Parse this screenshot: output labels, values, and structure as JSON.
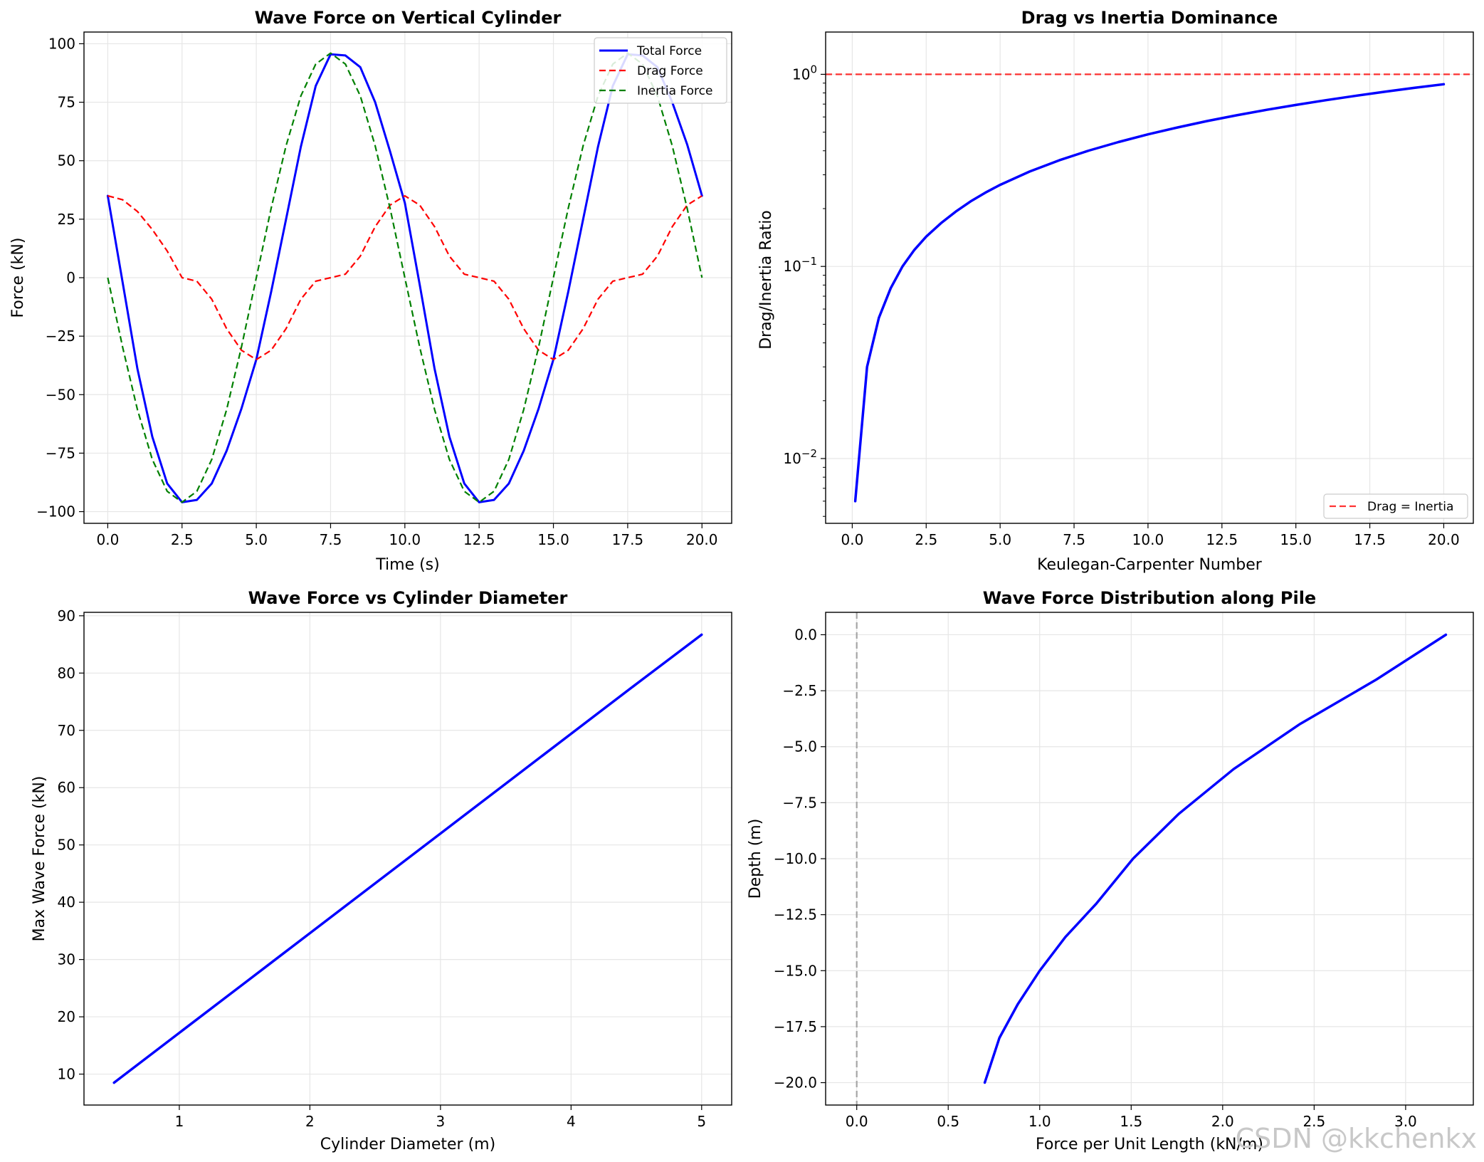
{
  "chart_data": [
    {
      "type": "line",
      "title": "Wave Force on Vertical Cylinder",
      "xlabel": "Time (s)",
      "ylabel": "Force (kN)",
      "xlim": [
        -0.8,
        21.0
      ],
      "ylim": [
        -105,
        105
      ],
      "xscale": "linear",
      "yscale": "linear",
      "grid": true,
      "legend_position": "top-right",
      "xticks": [
        0.0,
        2.5,
        5.0,
        7.5,
        10.0,
        12.5,
        15.0,
        17.5,
        20.0
      ],
      "xtick_labels": [
        "0.0",
        "2.5",
        "5.0",
        "7.5",
        "10.0",
        "12.5",
        "15.0",
        "17.5",
        "20.0"
      ],
      "yticks": [
        -100,
        -75,
        -50,
        -25,
        0,
        25,
        50,
        75,
        100
      ],
      "ytick_labels": [
        "−100",
        "−75",
        "−50",
        "−25",
        "0",
        "25",
        "50",
        "75",
        "100"
      ],
      "series": [
        {
          "name": "Total Force",
          "color": "#0000ff",
          "style": "solid",
          "width": 3,
          "x": [
            0.0,
            0.5,
            1.0,
            1.5,
            2.0,
            2.5,
            3.0,
            3.5,
            4.0,
            4.5,
            5.0,
            5.5,
            6.0,
            6.5,
            7.0,
            7.5,
            8.0,
            8.5,
            9.0,
            9.5,
            10.0,
            10.5,
            11.0,
            11.5,
            12.0,
            12.5,
            13.0,
            13.5,
            14.0,
            14.5,
            15.0,
            15.5,
            16.0,
            16.5,
            17.0,
            17.5,
            18.0,
            18.5,
            19.0,
            19.5,
            20.0
          ],
          "y": [
            35.0,
            -2.0,
            -39.0,
            -68.0,
            -88.0,
            -96.0,
            -95.0,
            -88.0,
            -74.0,
            -56.0,
            -35.0,
            -6.0,
            25.0,
            56.0,
            82.0,
            95.5,
            95.0,
            90.0,
            75.0,
            54.0,
            32.0,
            -3.0,
            -39.0,
            -68.0,
            -88.0,
            -96.0,
            -95.0,
            -88.0,
            -74.0,
            -56.0,
            -35.0,
            -6.0,
            25.0,
            56.0,
            82.0,
            95.5,
            95.0,
            90.0,
            75.0,
            57.0,
            35.0
          ]
        },
        {
          "name": "Drag Force",
          "color": "#ff0000",
          "style": "dashed",
          "width": 2.2,
          "x": [
            0.0,
            0.5,
            1.0,
            1.5,
            2.0,
            2.5,
            3.0,
            3.5,
            4.0,
            4.5,
            5.0,
            5.5,
            6.0,
            6.5,
            7.0,
            7.5,
            8.0,
            8.5,
            9.0,
            9.5,
            10.0,
            10.5,
            11.0,
            11.5,
            12.0,
            12.5,
            13.0,
            13.5,
            14.0,
            14.5,
            15.0,
            15.5,
            16.0,
            16.5,
            17.0,
            17.5,
            18.0,
            18.5,
            19.0,
            19.5,
            20.0
          ],
          "y": [
            35.0,
            33.3,
            28.3,
            20.6,
            11.4,
            0.0,
            -1.5,
            -9.2,
            -21.8,
            -31.0,
            -35.0,
            -31.0,
            -21.8,
            -9.2,
            -1.5,
            0.0,
            1.5,
            9.2,
            21.8,
            31.0,
            35.0,
            31.0,
            21.8,
            9.2,
            1.5,
            0.0,
            -1.5,
            -9.2,
            -21.8,
            -31.0,
            -35.0,
            -31.0,
            -21.8,
            -9.2,
            -1.5,
            0.0,
            1.5,
            9.2,
            21.8,
            31.0,
            35.0
          ]
        },
        {
          "name": "Inertia Force",
          "color": "#008000",
          "style": "dashed",
          "width": 2.2,
          "x": [
            0.0,
            0.5,
            1.0,
            1.5,
            2.0,
            2.5,
            3.0,
            3.5,
            4.0,
            4.5,
            5.0,
            5.5,
            6.0,
            6.5,
            7.0,
            7.5,
            8.0,
            8.5,
            9.0,
            9.5,
            10.0,
            10.5,
            11.0,
            11.5,
            12.0,
            12.5,
            13.0,
            13.5,
            14.0,
            14.5,
            15.0,
            15.5,
            16.0,
            16.5,
            17.0,
            17.5,
            18.0,
            18.5,
            19.0,
            19.5,
            20.0
          ],
          "y": [
            0.0,
            -29.7,
            -56.4,
            -77.7,
            -91.3,
            -96.0,
            -91.3,
            -77.7,
            -56.4,
            -29.7,
            0.0,
            29.7,
            56.4,
            77.7,
            91.3,
            96.0,
            91.3,
            77.7,
            56.4,
            29.7,
            0.0,
            -29.7,
            -56.4,
            -77.7,
            -91.3,
            -96.0,
            -91.3,
            -77.7,
            -56.4,
            -29.7,
            0.0,
            29.7,
            56.4,
            77.7,
            91.3,
            96.0,
            91.3,
            77.7,
            56.4,
            29.7,
            0.0
          ]
        }
      ]
    },
    {
      "type": "line",
      "title": "Drag vs Inertia Dominance",
      "xlabel": "Keulegan-Carpenter Number",
      "ylabel": "Drag/Inertia Ratio",
      "xlim": [
        -0.9,
        21.0
      ],
      "ylim": [
        0.0046,
        1.66
      ],
      "xscale": "linear",
      "yscale": "log",
      "grid": true,
      "legend_position": "bottom-right",
      "xticks": [
        0.0,
        2.5,
        5.0,
        7.5,
        10.0,
        12.5,
        15.0,
        17.5,
        20.0
      ],
      "xtick_labels": [
        "0.0",
        "2.5",
        "5.0",
        "7.5",
        "10.0",
        "12.5",
        "15.0",
        "17.5",
        "20.0"
      ],
      "yticks": [
        0.01,
        0.1,
        1.0
      ],
      "ytick_base": "10",
      "ytick_exponents": [
        "−2",
        "−1",
        "0"
      ],
      "reference_line": {
        "name": "Drag = Inertia",
        "y": 1.0,
        "color": "#ff0000",
        "style": "dashed"
      },
      "series": [
        {
          "name": "Ratio",
          "color": "#0000ff",
          "style": "solid",
          "width": 3.5,
          "x": [
            0.1,
            0.5,
            0.9,
            1.3,
            1.7,
            2.1,
            2.5,
            3.0,
            3.5,
            4.0,
            4.5,
            5.0,
            6.0,
            7.0,
            8.0,
            9.0,
            10.0,
            11.0,
            12.0,
            13.0,
            14.0,
            15.0,
            16.0,
            17.0,
            18.0,
            19.0,
            20.0
          ],
          "y": [
            0.006,
            0.03,
            0.054,
            0.077,
            0.1,
            0.122,
            0.143,
            0.168,
            0.193,
            0.218,
            0.242,
            0.266,
            0.312,
            0.357,
            0.401,
            0.444,
            0.487,
            0.529,
            0.571,
            0.612,
            0.653,
            0.693,
            0.733,
            0.772,
            0.811,
            0.85,
            0.888
          ]
        }
      ]
    },
    {
      "type": "line",
      "title": "Wave Force vs Cylinder Diameter",
      "xlabel": "Cylinder Diameter (m)",
      "ylabel": "Max Wave Force (kN)",
      "xlim": [
        0.27,
        5.23
      ],
      "ylim": [
        4.6,
        90.6
      ],
      "xscale": "linear",
      "yscale": "linear",
      "grid": true,
      "xticks": [
        1,
        2,
        3,
        4,
        5
      ],
      "xtick_labels": [
        "1",
        "2",
        "3",
        "4",
        "5"
      ],
      "yticks": [
        10,
        20,
        30,
        40,
        50,
        60,
        70,
        80,
        90
      ],
      "ytick_labels": [
        "10",
        "20",
        "30",
        "40",
        "50",
        "60",
        "70",
        "80",
        "90"
      ],
      "series": [
        {
          "name": "Max Wave Force",
          "color": "#0000ff",
          "style": "solid",
          "width": 3.5,
          "x": [
            0.5,
            1.0,
            1.5,
            2.0,
            2.5,
            3.0,
            3.5,
            4.0,
            4.5,
            5.0
          ],
          "y": [
            8.5,
            17.2,
            25.9,
            34.6,
            43.3,
            52.0,
            60.7,
            69.4,
            78.1,
            86.7
          ]
        }
      ]
    },
    {
      "type": "line",
      "title": "Wave Force Distribution along Pile",
      "xlabel": "Force per Unit Length (kN/m)",
      "ylabel": "Depth (m)",
      "xlim": [
        -0.17,
        3.37
      ],
      "ylim": [
        -21.0,
        1.0
      ],
      "xscale": "linear",
      "yscale": "linear",
      "grid": true,
      "xticks": [
        0.0,
        0.5,
        1.0,
        1.5,
        2.0,
        2.5,
        3.0
      ],
      "xtick_labels": [
        "0.0",
        "0.5",
        "1.0",
        "1.5",
        "2.0",
        "2.5",
        "3.0"
      ],
      "yticks": [
        -20.0,
        -17.5,
        -15.0,
        -12.5,
        -10.0,
        -7.5,
        -5.0,
        -2.5,
        0.0
      ],
      "ytick_labels": [
        "−20.0",
        "−17.5",
        "−15.0",
        "−12.5",
        "−10.0",
        "−7.5",
        "−5.0",
        "−2.5",
        "0.0"
      ],
      "reference_line": {
        "name": "zero force",
        "x": 0.0,
        "color": "#999999",
        "style": "dashed"
      },
      "series": [
        {
          "name": "Force distribution",
          "color": "#0000ff",
          "style": "solid",
          "width": 3.5,
          "x": [
            0.7,
            0.78,
            0.88,
            1.0,
            1.14,
            1.31,
            1.51,
            1.76,
            2.06,
            2.42,
            2.84,
            3.22
          ],
          "y": [
            -20.0,
            -18.0,
            -16.5,
            -15.0,
            -13.5,
            -12.0,
            -10.0,
            -8.0,
            -6.0,
            -4.0,
            -2.0,
            0.0
          ]
        }
      ]
    }
  ],
  "legend": {
    "panel1": [
      "Total Force",
      "Drag Force",
      "Inertia Force"
    ],
    "panel2": [
      "Drag = Inertia"
    ]
  },
  "watermark": "CSDN @kkchenkx"
}
